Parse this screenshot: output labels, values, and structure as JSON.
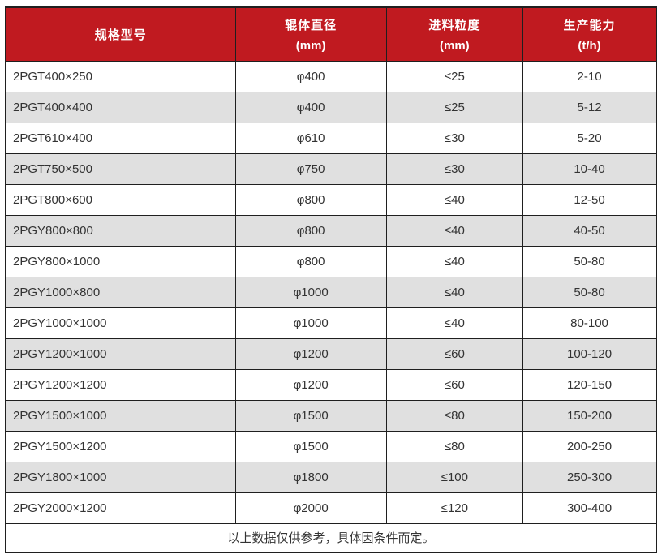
{
  "colors": {
    "header_bg": "#c01a20",
    "header_text": "#ffffff",
    "alt_row": "#e0e0e0",
    "border": "#1f1f1f",
    "text": "#333333"
  },
  "header": {
    "cols": [
      {
        "title": "规格型号",
        "unit": ""
      },
      {
        "title": "辊体直径",
        "unit": "(mm)"
      },
      {
        "title": "进料粒度",
        "unit": "(mm)"
      },
      {
        "title": "生产能力",
        "unit": "(t/h)"
      }
    ]
  },
  "chart_data": {
    "type": "table",
    "columns": [
      "规格型号",
      "辊体直径 (mm)",
      "进料粒度 (mm)",
      "生产能力 (t/h)"
    ],
    "rows": [
      [
        "2PGT400×250",
        "φ400",
        "≤25",
        "2-10"
      ],
      [
        "2PGT400×400",
        "φ400",
        "≤25",
        "5-12"
      ],
      [
        "2PGT610×400",
        "φ610",
        "≤30",
        "5-20"
      ],
      [
        "2PGT750×500",
        "φ750",
        "≤30",
        "10-40"
      ],
      [
        "2PGT800×600",
        "φ800",
        "≤40",
        "12-50"
      ],
      [
        "2PGY800×800",
        "φ800",
        "≤40",
        "40-50"
      ],
      [
        "2PGY800×1000",
        "φ800",
        "≤40",
        "50-80"
      ],
      [
        "2PGY1000×800",
        "φ1000",
        "≤40",
        "50-80"
      ],
      [
        "2PGY1000×1000",
        "φ1000",
        "≤40",
        "80-100"
      ],
      [
        "2PGY1200×1000",
        "φ1200",
        "≤60",
        "100-120"
      ],
      [
        "2PGY1200×1200",
        "φ1200",
        "≤60",
        "120-150"
      ],
      [
        "2PGY1500×1000",
        "φ1500",
        "≤80",
        "150-200"
      ],
      [
        "2PGY1500×1200",
        "φ1500",
        "≤80",
        "200-250"
      ],
      [
        "2PGY1800×1000",
        "φ1800",
        "≤100",
        "250-300"
      ],
      [
        "2PGY2000×1200",
        "φ2000",
        "≤120",
        "300-400"
      ]
    ],
    "footnote": "以上数据仅供参考，具体因条件而定。",
    "layout": {
      "header_bg": "#c01a20",
      "zebra_striping": true,
      "grid": true,
      "first_column_align": "left",
      "other_columns_align": "center"
    }
  }
}
